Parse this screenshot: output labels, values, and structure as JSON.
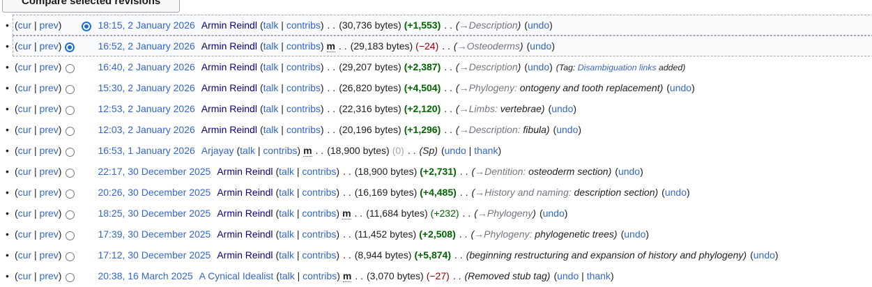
{
  "compare_button": {
    "label": "Compare selected revisions"
  },
  "colors": {
    "link": "#3366cc",
    "visited_link": "#0b0080",
    "addition_green": "#006400",
    "removal_red": "#8b0000",
    "zero_gray": "#a2a9b1",
    "autocomment_gray": "#72777d",
    "selected_row_bg": "#f8f9fa",
    "selected_radio_blue": "#1b6fd0"
  },
  "labels": {
    "open": "(",
    "close": ")",
    "pipe": " | ",
    "cur": "cur",
    "prev": "prev",
    "talk": "talk",
    "contribs": "contribs",
    "undo": "undo",
    "thank": "thank",
    "minor": "m",
    "sep": ". .",
    "arrow": "→",
    "colon": ":",
    "tag_prefix": "Tag: "
  },
  "history": {
    "rows": [
      {
        "selected": true,
        "radio_left": "hidden",
        "radio_right": "selected",
        "timestamp": "18:15, 2 January 2026",
        "user": "Armin Reindl",
        "visited": true,
        "minor": false,
        "size": "30,736 bytes",
        "diff": "+1,553",
        "diff_class": "pos-b",
        "summary": {
          "section": "Description",
          "text": ""
        },
        "thank": false
      },
      {
        "selected": true,
        "radio_left": "selected",
        "radio_right": "hidden",
        "timestamp": "16:52, 2 January 2026",
        "user": "Armin Reindl",
        "visited": true,
        "minor": true,
        "size": "29,183 bytes",
        "diff": "−24",
        "diff_class": "neg",
        "summary": {
          "section": "Osteoderms",
          "text": ""
        },
        "thank": false
      },
      {
        "selected": false,
        "radio_left": "unselected",
        "radio_right": "hidden",
        "timestamp": "16:40, 2 January 2026",
        "user": "Armin Reindl",
        "visited": true,
        "minor": false,
        "size": "29,207 bytes",
        "diff": "+2,387",
        "diff_class": "pos-b",
        "summary": {
          "section": "Description",
          "text": ""
        },
        "thank": false,
        "tag": {
          "link": "Disambiguation links",
          "suffix": " added"
        }
      },
      {
        "selected": false,
        "radio_left": "unselected",
        "radio_right": "hidden",
        "timestamp": "15:30, 2 January 2026",
        "user": "Armin Reindl",
        "visited": true,
        "minor": false,
        "size": "26,820 bytes",
        "diff": "+4,504",
        "diff_class": "pos-b",
        "summary": {
          "section": "Phylogeny",
          "text": "ontogeny and tooth replacement"
        },
        "thank": false
      },
      {
        "selected": false,
        "radio_left": "unselected",
        "radio_right": "hidden",
        "timestamp": "12:53, 2 January 2026",
        "user": "Armin Reindl",
        "visited": true,
        "minor": false,
        "size": "22,316 bytes",
        "diff": "+2,120",
        "diff_class": "pos-b",
        "summary": {
          "section": "Limbs",
          "text": "vertebrae"
        },
        "thank": false
      },
      {
        "selected": false,
        "radio_left": "unselected",
        "radio_right": "hidden",
        "timestamp": "12:03, 2 January 2026",
        "user": "Armin Reindl",
        "visited": true,
        "minor": false,
        "size": "20,196 bytes",
        "diff": "+1,296",
        "diff_class": "pos-b",
        "summary": {
          "section": "Description",
          "text": "fibula"
        },
        "thank": false
      },
      {
        "selected": false,
        "radio_left": "unselected",
        "radio_right": "hidden",
        "timestamp": "16:53, 1 January 2026",
        "user": "Arjayay",
        "visited": false,
        "minor": true,
        "size": "18,900 bytes",
        "diff": "0",
        "diff_class": "zero",
        "summary": {
          "text": "Sp"
        },
        "thank": true
      },
      {
        "selected": false,
        "radio_left": "unselected",
        "radio_right": "hidden",
        "timestamp": "22:17, 30 December 2025",
        "user": "Armin Reindl",
        "visited": true,
        "minor": false,
        "size": "18,900 bytes",
        "diff": "+2,731",
        "diff_class": "pos-b",
        "summary": {
          "section": "Dentition",
          "text": "osteoderm section"
        },
        "thank": false
      },
      {
        "selected": false,
        "radio_left": "unselected",
        "radio_right": "hidden",
        "timestamp": "20:26, 30 December 2025",
        "user": "Armin Reindl",
        "visited": true,
        "minor": false,
        "size": "16,169 bytes",
        "diff": "+4,485",
        "diff_class": "pos-b",
        "summary": {
          "section": "History and naming",
          "text": "description section"
        },
        "thank": false
      },
      {
        "selected": false,
        "radio_left": "unselected",
        "radio_right": "hidden",
        "timestamp": "18:25, 30 December 2025",
        "user": "Armin Reindl",
        "visited": true,
        "minor": true,
        "size": "11,684 bytes",
        "diff": "+232",
        "diff_class": "pos",
        "summary": {
          "section": "Phylogeny",
          "text": ""
        },
        "thank": false
      },
      {
        "selected": false,
        "radio_left": "unselected",
        "radio_right": "hidden",
        "timestamp": "17:39, 30 December 2025",
        "user": "Armin Reindl",
        "visited": true,
        "minor": false,
        "size": "11,452 bytes",
        "diff": "+2,508",
        "diff_class": "pos-b",
        "summary": {
          "section": "Phylogeny",
          "text": "phylogenetic trees"
        },
        "thank": false
      },
      {
        "selected": false,
        "radio_left": "unselected",
        "radio_right": "hidden",
        "timestamp": "17:12, 30 December 2025",
        "user": "Armin Reindl",
        "visited": true,
        "minor": false,
        "size": "8,944 bytes",
        "diff": "+5,874",
        "diff_class": "pos-b",
        "summary": {
          "text": "beginning restructuring and expansion of history and phylogeny"
        },
        "thank": false
      },
      {
        "selected": false,
        "radio_left": "unselected",
        "radio_right": "hidden",
        "timestamp": "20:38, 16 March 2025",
        "user": "A Cynical Idealist",
        "visited": false,
        "minor": true,
        "size": "3,070 bytes",
        "diff": "−27",
        "diff_class": "neg",
        "summary": {
          "text": "Removed stub tag"
        },
        "thank": true
      }
    ]
  }
}
